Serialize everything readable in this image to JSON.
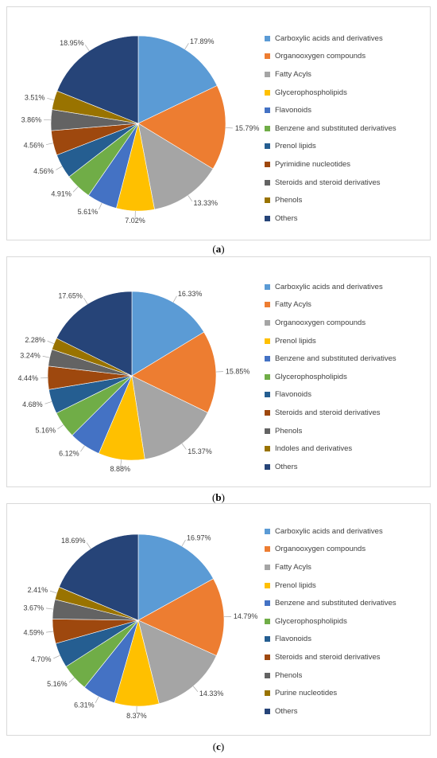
{
  "captions": [
    "a",
    "b",
    "c"
  ],
  "chart_data": [
    {
      "type": "pie",
      "panel_label": "a",
      "categories": [
        "Carboxylic acids and derivatives",
        "Organooxygen compounds",
        "Fatty Acyls",
        "Glycerophospholipids",
        "Flavonoids",
        "Benzene and substituted derivatives",
        "Prenol lipids",
        "Pyrimidine nucleotides",
        "Steroids and steroid derivatives",
        "Phenols",
        "Others"
      ],
      "values": [
        17.89,
        15.79,
        13.33,
        7.02,
        5.61,
        4.91,
        4.56,
        4.56,
        3.86,
        3.51,
        18.95
      ],
      "data_labels": [
        "17.89%",
        "15.79%",
        "13.33%",
        "7.02%",
        "5.61%",
        "4.91%",
        "4.56%",
        "4.56%",
        "3.86%",
        "3.51%",
        "18.95%"
      ],
      "colors": [
        "#5B9BD5",
        "#ED7D31",
        "#A5A5A5",
        "#FFC000",
        "#4472C4",
        "#70AD47",
        "#255E91",
        "#9E480E",
        "#636363",
        "#997300",
        "#264478"
      ],
      "legend_position": "right"
    },
    {
      "type": "pie",
      "panel_label": "b",
      "categories": [
        "Carboxylic acids and derivatives",
        "Fatty Acyls",
        "Organooxygen compounds",
        "Prenol lipids",
        "Benzene and substituted derivatives",
        "Glycerophospholipids",
        "Flavonoids",
        "Steroids and steroid derivatives",
        "Phenols",
        "Indoles and derivatives",
        "Others"
      ],
      "values": [
        16.33,
        15.85,
        15.37,
        8.88,
        6.12,
        5.16,
        4.68,
        4.44,
        3.24,
        2.28,
        17.65
      ],
      "data_labels": [
        "16.33%",
        "15.85%",
        "15.37%",
        "8.88%",
        "6.12%",
        "5.16%",
        "4.68%",
        "4.44%",
        "3.24%",
        "2.28%",
        "17.65%"
      ],
      "colors": [
        "#5B9BD5",
        "#ED7D31",
        "#A5A5A5",
        "#FFC000",
        "#4472C4",
        "#70AD47",
        "#255E91",
        "#9E480E",
        "#636363",
        "#997300",
        "#264478"
      ],
      "legend_position": "right"
    },
    {
      "type": "pie",
      "panel_label": "c",
      "categories": [
        "Carboxylic acids and derivatives",
        "Organooxygen compounds",
        "Fatty Acyls",
        "Prenol lipids",
        "Benzene and substituted derivatives",
        "Glycerophospholipids",
        "Flavonoids",
        "Steroids and steroid derivatives",
        "Phenols",
        "Purine nucleotides",
        "Others"
      ],
      "values": [
        16.97,
        14.79,
        14.33,
        8.37,
        6.31,
        5.16,
        4.7,
        4.59,
        3.67,
        2.41,
        18.69
      ],
      "data_labels": [
        "16.97%",
        "14.79%",
        "14.33%",
        "8.37%",
        "6.31%",
        "5.16%",
        "4.70%",
        "4.59%",
        "3.67%",
        "2.41%",
        "18.69%"
      ],
      "colors": [
        "#5B9BD5",
        "#ED7D31",
        "#A5A5A5",
        "#FFC000",
        "#4472C4",
        "#70AD47",
        "#255E91",
        "#9E480E",
        "#636363",
        "#997300",
        "#264478"
      ],
      "legend_position": "right"
    }
  ]
}
